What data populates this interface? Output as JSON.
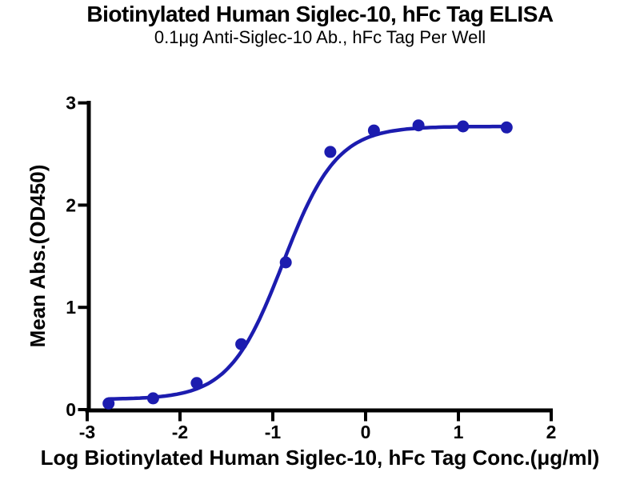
{
  "chart_data": {
    "type": "scatter",
    "title": "Biotinylated Human Siglec-10, hFc Tag ELISA",
    "subtitle": "0.1μg Anti-Siglec-10 Ab., hFc Tag Per Well",
    "xlabel": "Log Biotinylated Human Siglec-10, hFc Tag Conc.(μg/ml)",
    "ylabel": "Mean Abs.(OD450)",
    "xlim": [
      -3,
      2
    ],
    "ylim": [
      0,
      3
    ],
    "x_ticks": [
      -3,
      -2,
      -1,
      0,
      1,
      2
    ],
    "y_ticks": [
      0,
      1,
      2,
      3
    ],
    "grid": false,
    "legend_position": "none",
    "series": [
      {
        "marker": "circle",
        "x": [
          -2.77,
          -2.29,
          -1.82,
          -1.34,
          -0.86,
          -0.38,
          0.09,
          0.57,
          1.05,
          1.52
        ],
        "y": [
          0.06,
          0.11,
          0.26,
          0.64,
          1.44,
          2.52,
          2.73,
          2.78,
          2.77,
          2.76
        ]
      }
    ],
    "fit_curve": {
      "model": "4PL",
      "bottom": 0.1,
      "top": 2.77,
      "log_ec50": -0.89,
      "hill": 1.5
    },
    "colors": {
      "series": "#1c1caf",
      "axis": "#000000",
      "text": "#000000"
    }
  }
}
